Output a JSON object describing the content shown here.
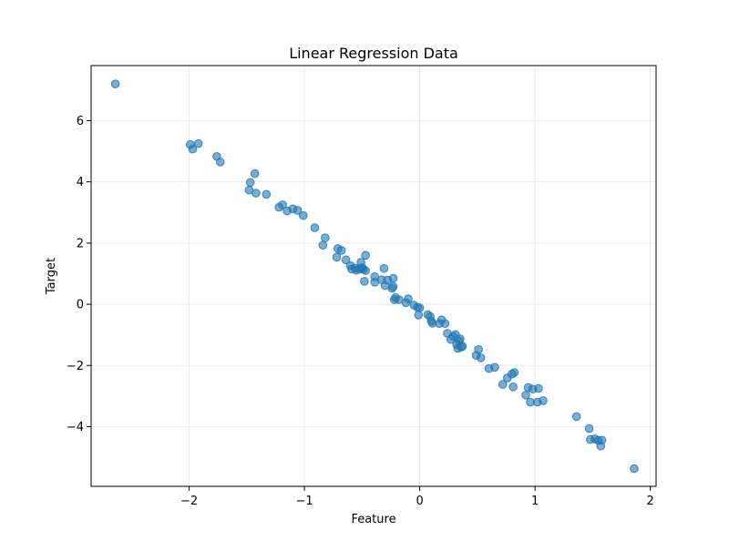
{
  "chart_data": {
    "type": "scatter",
    "title": "Linear Regression Data",
    "xlabel": "Feature",
    "ylabel": "Target",
    "xlim": [
      -2.85,
      2.05
    ],
    "ylim": [
      -5.95,
      7.8
    ],
    "xticks": [
      -2,
      -1,
      0,
      1,
      2
    ],
    "yticks": [
      -4,
      -2,
      0,
      2,
      4,
      6
    ],
    "grid": true,
    "point_color": "#1f77b4",
    "point_alpha": 0.6,
    "series": [
      {
        "x": [
          -2.64,
          -1.99,
          -1.97,
          -1.92,
          -1.76,
          -1.73,
          -1.48,
          -1.47,
          -1.43,
          -1.42,
          -1.33,
          -1.22,
          -1.19,
          -1.15,
          -1.1,
          -1.06,
          -1.01,
          -0.91,
          -0.84,
          -0.82,
          -0.72,
          -0.71,
          -0.68,
          -0.64,
          -0.6,
          -0.59,
          -0.56,
          -0.55,
          -0.52,
          -0.51,
          -0.5,
          -0.49,
          -0.48,
          -0.47,
          -0.47,
          -0.39,
          -0.39,
          -0.33,
          -0.31,
          -0.3,
          -0.28,
          -0.24,
          -0.23,
          -0.23,
          -0.22,
          -0.21,
          -0.18,
          -0.12,
          -0.1,
          -0.05,
          -0.02,
          -0.01,
          0.0,
          0.07,
          0.09,
          0.1,
          0.11,
          0.17,
          0.19,
          0.22,
          0.24,
          0.27,
          0.29,
          0.31,
          0.32,
          0.33,
          0.34,
          0.35,
          0.36,
          0.37,
          0.49,
          0.51,
          0.53,
          0.6,
          0.65,
          0.72,
          0.76,
          0.8,
          0.81,
          0.82,
          0.92,
          0.94,
          0.96,
          0.98,
          1.02,
          1.03,
          1.07,
          1.36,
          1.47,
          1.48,
          1.52,
          1.55,
          1.57,
          1.58,
          1.86
        ],
        "y": [
          7.2,
          5.22,
          5.07,
          5.25,
          4.83,
          4.65,
          3.73,
          3.98,
          4.27,
          3.63,
          3.59,
          3.17,
          3.25,
          3.05,
          3.12,
          3.07,
          2.9,
          2.5,
          1.93,
          2.17,
          1.54,
          1.82,
          1.76,
          1.45,
          1.26,
          1.15,
          1.18,
          1.11,
          1.15,
          1.37,
          1.2,
          1.15,
          0.75,
          1.1,
          1.6,
          0.9,
          0.72,
          0.8,
          1.17,
          0.61,
          0.79,
          0.52,
          0.85,
          0.58,
          0.15,
          0.22,
          0.15,
          0.05,
          0.18,
          -0.03,
          -0.1,
          -0.35,
          -0.12,
          -0.34,
          -0.4,
          -0.55,
          -0.62,
          -0.63,
          -0.51,
          -0.63,
          -0.95,
          -1.15,
          -1.05,
          -0.99,
          -1.31,
          -1.44,
          -1.2,
          -1.13,
          -1.4,
          -1.37,
          -1.67,
          -1.48,
          -1.75,
          -2.1,
          -2.06,
          -2.62,
          -2.41,
          -2.28,
          -2.7,
          -2.23,
          -2.97,
          -2.72,
          -3.2,
          -2.77,
          -3.2,
          -2.75,
          -3.15,
          -3.67,
          -4.06,
          -4.42,
          -4.4,
          -4.45,
          -4.63,
          -4.44,
          -5.37
        ]
      }
    ]
  }
}
